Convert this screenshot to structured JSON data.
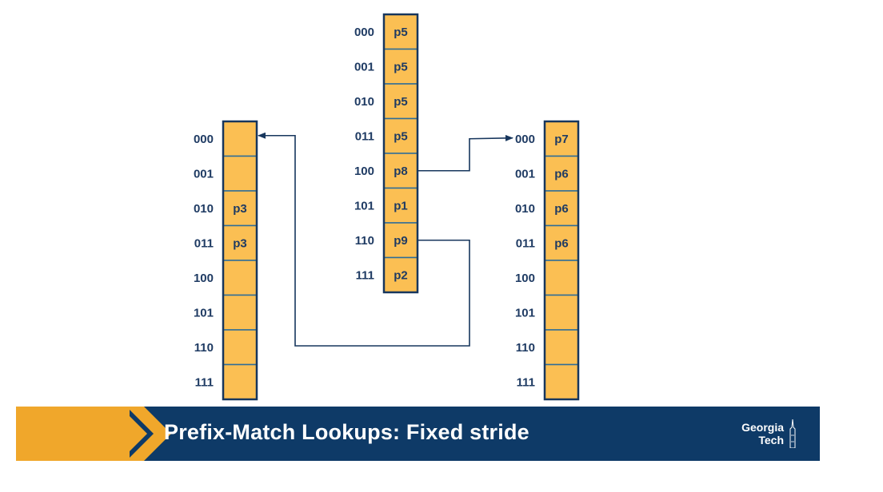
{
  "tables": {
    "left": {
      "codes": [
        "000",
        "001",
        "010",
        "011",
        "100",
        "101",
        "110",
        "111"
      ],
      "cells": [
        "",
        "",
        "p3",
        "p3",
        "",
        "",
        "",
        ""
      ]
    },
    "middle": {
      "codes": [
        "000",
        "001",
        "010",
        "011",
        "100",
        "101",
        "110",
        "111"
      ],
      "cells": [
        "p5",
        "p5",
        "p5",
        "p5",
        "p8",
        "p1",
        "p9",
        "p2"
      ]
    },
    "right": {
      "codes": [
        "000",
        "001",
        "010",
        "011",
        "100",
        "101",
        "110",
        "111"
      ],
      "cells": [
        "p7",
        "p6",
        "p6",
        "p6",
        "",
        "",
        "",
        ""
      ]
    }
  },
  "links": [
    {
      "from": "middle",
      "from_row": 4,
      "to": "right",
      "to_row": 0
    },
    {
      "from": "middle",
      "from_row": 6,
      "to": "left",
      "to_row": 0
    }
  ],
  "colors": {
    "cell_fill": "#fbbf53",
    "cell_border": "#2c6d99",
    "outline": "#17365d",
    "text": "#1f3b63",
    "footer_bg": "#0e3a67",
    "footer_accent": "#f0a72b"
  },
  "footer": {
    "title": "Prefix-Match Lookups: Fixed stride",
    "logo_line1": "Georgia",
    "logo_line2": "Tech"
  }
}
